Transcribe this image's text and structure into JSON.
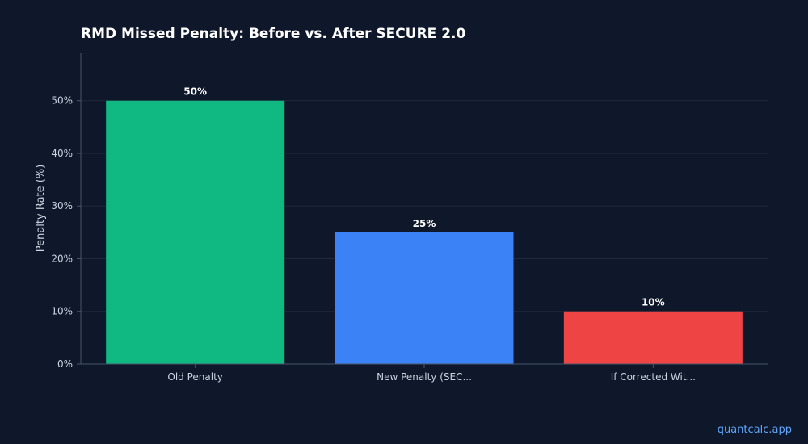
{
  "chart_data": {
    "type": "bar",
    "title": "RMD Missed Penalty: Before vs. After SECURE 2.0",
    "xlabel": "",
    "ylabel": "Penalty Rate (%)",
    "categories": [
      "Old Penalty",
      "New Penalty (SEC...",
      "If Corrected Wit..."
    ],
    "values": [
      50,
      25,
      10
    ],
    "value_labels": [
      "50%",
      "25%",
      "10%"
    ],
    "colors": [
      "#10b981",
      "#3b82f6",
      "#ef4444"
    ],
    "ylim": [
      0,
      59
    ],
    "yticks": [
      0,
      10,
      20,
      30,
      40,
      50
    ],
    "ytick_labels": [
      "0%",
      "10%",
      "20%",
      "30%",
      "40%",
      "50%"
    ],
    "grid": true,
    "legend": "none"
  },
  "watermark": "quantcalc.app"
}
